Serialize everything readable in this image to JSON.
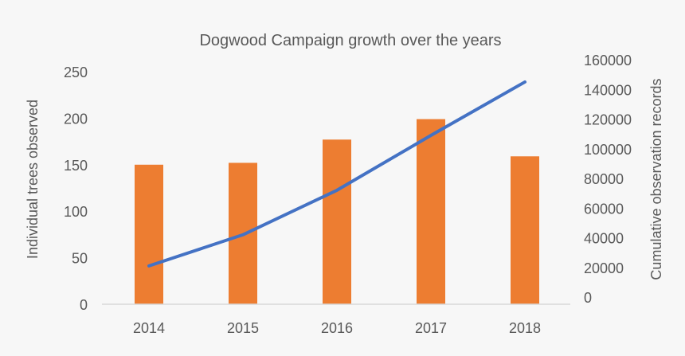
{
  "chart_data": {
    "type": "bar+line",
    "title": "Dogwood Campaign growth over the years",
    "categories": [
      "2014",
      "2015",
      "2016",
      "2017",
      "2018"
    ],
    "series": [
      {
        "type": "bar",
        "axis": "left",
        "values": [
          150,
          152,
          177,
          199,
          159
        ]
      },
      {
        "type": "line",
        "axis": "right",
        "values": [
          21000,
          42000,
          72000,
          109000,
          145000
        ]
      }
    ],
    "ylabel": "Individual trees observed",
    "ylabel_right": "Cumulative observation records",
    "ylim": [
      0,
      250
    ],
    "ylim_right": [
      0,
      160000
    ],
    "yticks": [
      "0",
      "50",
      "100",
      "150",
      "200",
      "250"
    ],
    "yticks_right": [
      "0",
      "20000",
      "40000",
      "60000",
      "80000",
      "100000",
      "120000",
      "140000",
      "160000"
    ],
    "grid": false,
    "legend": "none",
    "colors": {
      "bar": "#ed7d31",
      "line": "#4472c4",
      "text": "#595959",
      "axis": "#d9d9d9",
      "background": "#f7f7f7"
    }
  }
}
